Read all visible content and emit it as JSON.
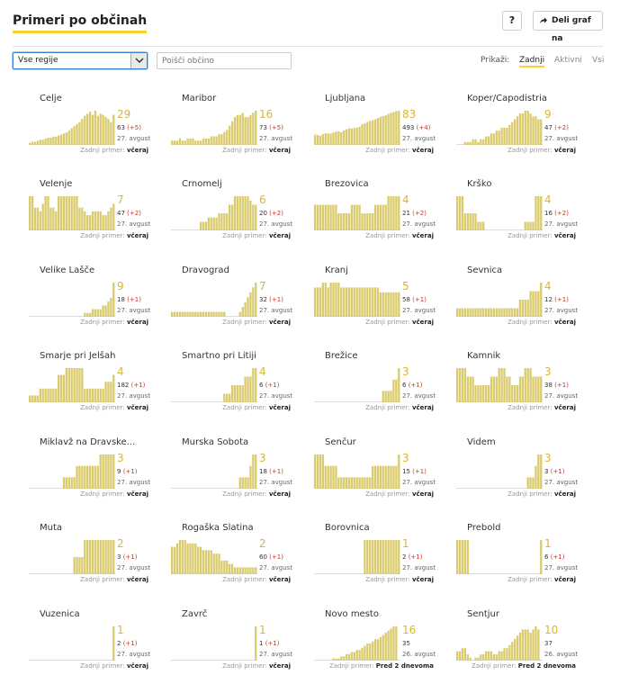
{
  "header": {
    "title": "Primeri po občinah",
    "help_label": "?",
    "share_label": "Deli graf na"
  },
  "controls": {
    "region_value": "Vse regije",
    "search_placeholder": "Poišči občino",
    "display_label": "Prikaži:",
    "options": [
      "Zadnji",
      "Aktivni",
      "Vsi"
    ],
    "active_option": "Zadnji"
  },
  "colors": {
    "bar": "#dacb6e",
    "accent": "#f6d32d",
    "delta": "#c0392b"
  },
  "chart_data": {
    "type": "bar",
    "last_label": "Zadnji primer:",
    "municipalities": [
      {
        "name": "Celje",
        "latest": "29",
        "total": "63",
        "delta": "(+5)",
        "date": "27. avgust",
        "last": "včeraj",
        "values": [
          2,
          3,
          3,
          4,
          5,
          5,
          6,
          7,
          7,
          8,
          8,
          9,
          10,
          11,
          12,
          14,
          16,
          18,
          20,
          22,
          25,
          28,
          30,
          32,
          29,
          33,
          28,
          30,
          29,
          27,
          25,
          22,
          29
        ]
      },
      {
        "name": "Maribor",
        "latest": "16",
        "total": "73",
        "delta": "(+5)",
        "date": "27. avgust",
        "last": "včeraj",
        "values": [
          2,
          2,
          2,
          3,
          2,
          2,
          3,
          3,
          3,
          2,
          2,
          2,
          3,
          3,
          3,
          4,
          4,
          4,
          5,
          5,
          6,
          7,
          9,
          11,
          13,
          14,
          14,
          15,
          13,
          13,
          14,
          15,
          16
        ]
      },
      {
        "name": "Ljubljana",
        "latest": "83",
        "total": "493",
        "delta": "(+4)",
        "date": "27. avgust",
        "last": "včeraj",
        "values": [
          25,
          24,
          22,
          26,
          28,
          28,
          27,
          30,
          32,
          33,
          31,
          35,
          38,
          40,
          40,
          41,
          42,
          44,
          50,
          52,
          56,
          58,
          60,
          62,
          65,
          68,
          70,
          72,
          75,
          78,
          80,
          82,
          83
        ]
      },
      {
        "name": "Koper/Capodistria",
        "latest": "9",
        "total": "47",
        "delta": "(+2)",
        "date": "27. avgust",
        "last": "včeraj",
        "values": [
          0,
          0,
          0,
          1,
          1,
          1,
          2,
          2,
          1,
          2,
          2,
          3,
          3,
          4,
          4,
          5,
          5,
          6,
          6,
          6,
          7,
          8,
          9,
          10,
          11,
          11,
          12,
          12,
          11,
          10,
          10,
          9,
          9
        ]
      },
      {
        "name": "Velenje",
        "latest": "7",
        "total": "47",
        "delta": "(+2)",
        "date": "27. avgust",
        "last": "včeraj",
        "values": [
          9,
          9,
          6,
          6,
          5,
          7,
          9,
          9,
          6,
          6,
          5,
          9,
          9,
          9,
          9,
          9,
          9,
          9,
          9,
          6,
          6,
          5,
          4,
          4,
          5,
          5,
          5,
          5,
          4,
          4,
          5,
          6,
          7
        ]
      },
      {
        "name": "Črnomelj",
        "latest": "6",
        "total": "20",
        "delta": "(+2)",
        "date": "27. avgust",
        "last": "včeraj",
        "values": [
          0,
          0,
          0,
          0,
          0,
          0,
          0,
          0,
          0,
          0,
          0,
          2,
          2,
          2,
          3,
          3,
          3,
          3,
          4,
          4,
          4,
          4,
          6,
          6,
          8,
          8,
          8,
          8,
          8,
          8,
          7,
          6,
          6
        ]
      },
      {
        "name": "Brezovica",
        "latest": "4",
        "total": "21",
        "delta": "(+2)",
        "date": "27. avgust",
        "last": "včeraj",
        "values": [
          3,
          3,
          3,
          3,
          3,
          3,
          3,
          3,
          3,
          2,
          2,
          2,
          2,
          2,
          3,
          3,
          3,
          3,
          2,
          2,
          2,
          2,
          2,
          3,
          3,
          3,
          3,
          3,
          4,
          4,
          4,
          4,
          4
        ]
      },
      {
        "name": "Krško",
        "latest": "4",
        "total": "16",
        "delta": "(+2)",
        "date": "27. avgust",
        "last": "včeraj",
        "values": [
          4,
          4,
          4,
          2,
          2,
          2,
          2,
          2,
          1,
          1,
          1,
          0,
          0,
          0,
          0,
          0,
          0,
          0,
          0,
          0,
          0,
          0,
          0,
          0,
          0,
          0,
          1,
          1,
          1,
          1,
          4,
          4,
          4
        ]
      },
      {
        "name": "Velike Lašče",
        "latest": "9",
        "total": "18",
        "delta": "(+1)",
        "date": "27. avgust",
        "last": "včeraj",
        "values": [
          0,
          0,
          0,
          0,
          0,
          0,
          0,
          0,
          0,
          0,
          0,
          0,
          0,
          0,
          0,
          0,
          0,
          0,
          0,
          0,
          0,
          1,
          1,
          1,
          2,
          2,
          2,
          2,
          3,
          3,
          4,
          5,
          9
        ]
      },
      {
        "name": "Dravograd",
        "latest": "7",
        "total": "32",
        "delta": "(+1)",
        "date": "27. avgust",
        "last": "včeraj",
        "values": [
          1,
          1,
          1,
          1,
          1,
          1,
          1,
          1,
          1,
          1,
          1,
          1,
          1,
          1,
          1,
          1,
          1,
          1,
          1,
          1,
          1,
          0,
          0,
          0,
          0,
          0,
          1,
          2,
          3,
          4,
          5,
          6,
          7
        ]
      },
      {
        "name": "Kranj",
        "latest": "5",
        "total": "58",
        "delta": "(+1)",
        "date": "27. avgust",
        "last": "včeraj",
        "values": [
          6,
          6,
          6,
          7,
          7,
          6,
          7,
          7,
          7,
          7,
          6,
          6,
          6,
          6,
          6,
          6,
          6,
          6,
          6,
          6,
          6,
          6,
          6,
          6,
          6,
          5,
          5,
          5,
          5,
          5,
          5,
          5,
          5
        ]
      },
      {
        "name": "Sevnica",
        "latest": "4",
        "total": "12",
        "delta": "(+1)",
        "date": "27. avgust",
        "last": "včeraj",
        "values": [
          1,
          1,
          1,
          1,
          1,
          1,
          1,
          1,
          1,
          1,
          1,
          1,
          1,
          1,
          1,
          1,
          1,
          1,
          1,
          1,
          1,
          1,
          1,
          1,
          2,
          2,
          2,
          2,
          3,
          3,
          3,
          3,
          4
        ]
      },
      {
        "name": "Šmarje pri Jelšah",
        "latest": "4",
        "total": "182",
        "delta": "(+1)",
        "date": "27. avgust",
        "last": "včeraj",
        "values": [
          1,
          1,
          1,
          1,
          2,
          2,
          2,
          2,
          2,
          2,
          2,
          4,
          4,
          4,
          5,
          5,
          5,
          5,
          5,
          5,
          5,
          2,
          2,
          2,
          2,
          2,
          2,
          2,
          2,
          3,
          3,
          3,
          4
        ]
      },
      {
        "name": "Šmartno pri Litiji",
        "latest": "4",
        "total": "6",
        "delta": "(+1)",
        "date": "27. avgust",
        "last": "včeraj",
        "values": [
          0,
          0,
          0,
          0,
          0,
          0,
          0,
          0,
          0,
          0,
          0,
          0,
          0,
          0,
          0,
          0,
          0,
          0,
          0,
          0,
          1,
          1,
          1,
          2,
          2,
          2,
          2,
          2,
          3,
          3,
          3,
          4,
          4
        ]
      },
      {
        "name": "Brežice",
        "latest": "3",
        "total": "6",
        "delta": "(+1)",
        "date": "27. avgust",
        "last": "včeraj",
        "values": [
          0,
          0,
          0,
          0,
          0,
          0,
          0,
          0,
          0,
          0,
          0,
          0,
          0,
          0,
          0,
          0,
          0,
          0,
          0,
          0,
          0,
          0,
          0,
          0,
          0,
          0,
          1,
          1,
          1,
          1,
          2,
          2,
          3
        ]
      },
      {
        "name": "Kamnik",
        "latest": "3",
        "total": "38",
        "delta": "(+1)",
        "date": "27. avgust",
        "last": "včeraj",
        "values": [
          4,
          4,
          4,
          4,
          3,
          3,
          3,
          2,
          2,
          2,
          2,
          2,
          2,
          3,
          3,
          3,
          4,
          4,
          4,
          3,
          3,
          2,
          2,
          2,
          3,
          3,
          4,
          4,
          4,
          3,
          3,
          3,
          3
        ]
      },
      {
        "name": "Miklavž na Dravske...",
        "latest": "3",
        "total": "9",
        "delta": "(+1)",
        "date": "27. avgust",
        "last": "včeraj",
        "values": [
          0,
          0,
          0,
          0,
          0,
          0,
          0,
          0,
          0,
          0,
          0,
          0,
          0,
          1,
          1,
          1,
          1,
          1,
          2,
          2,
          2,
          2,
          2,
          2,
          2,
          2,
          2,
          3,
          3,
          3,
          3,
          3,
          3
        ]
      },
      {
        "name": "Murska Sobota",
        "latest": "3",
        "total": "18",
        "delta": "(+1)",
        "date": "27. avgust",
        "last": "včeraj",
        "values": [
          0,
          0,
          0,
          0,
          0,
          0,
          0,
          0,
          0,
          0,
          0,
          0,
          0,
          0,
          0,
          0,
          0,
          0,
          0,
          0,
          0,
          0,
          0,
          0,
          0,
          0,
          1,
          1,
          1,
          1,
          2,
          3,
          3
        ]
      },
      {
        "name": "Šenčur",
        "latest": "3",
        "total": "15",
        "delta": "(+1)",
        "date": "27. avgust",
        "last": "včeraj",
        "values": [
          3,
          3,
          3,
          3,
          2,
          2,
          2,
          2,
          2,
          1,
          1,
          1,
          1,
          1,
          1,
          1,
          1,
          1,
          1,
          1,
          1,
          1,
          2,
          2,
          2,
          2,
          2,
          2,
          2,
          2,
          2,
          2,
          3
        ]
      },
      {
        "name": "Videm",
        "latest": "3",
        "total": "3",
        "delta": "(+1)",
        "date": "27. avgust",
        "last": "včeraj",
        "values": [
          0,
          0,
          0,
          0,
          0,
          0,
          0,
          0,
          0,
          0,
          0,
          0,
          0,
          0,
          0,
          0,
          0,
          0,
          0,
          0,
          0,
          0,
          0,
          0,
          0,
          0,
          0,
          1,
          1,
          1,
          2,
          3,
          3
        ]
      },
      {
        "name": "Muta",
        "latest": "2",
        "total": "3",
        "delta": "(+1)",
        "date": "27. avgust",
        "last": "včeraj",
        "values": [
          0,
          0,
          0,
          0,
          0,
          0,
          0,
          0,
          0,
          0,
          0,
          0,
          0,
          0,
          0,
          0,
          0,
          1,
          1,
          1,
          1,
          2,
          2,
          2,
          2,
          2,
          2,
          2,
          2,
          2,
          2,
          2,
          2
        ]
      },
      {
        "name": "Rogaška Slatina",
        "latest": "2",
        "total": "60",
        "delta": "(+1)",
        "date": "27. avgust",
        "last": "včeraj",
        "values": [
          8,
          8,
          9,
          10,
          10,
          10,
          9,
          9,
          9,
          9,
          8,
          8,
          7,
          7,
          7,
          7,
          6,
          6,
          6,
          4,
          4,
          4,
          3,
          3,
          2,
          2,
          2,
          2,
          2,
          2,
          2,
          2,
          2
        ]
      },
      {
        "name": "Borovnica",
        "latest": "1",
        "total": "2",
        "delta": "(+1)",
        "date": "27. avgust",
        "last": "včeraj",
        "values": [
          0,
          0,
          0,
          0,
          0,
          0,
          0,
          0,
          0,
          0,
          0,
          0,
          0,
          0,
          0,
          0,
          0,
          0,
          0,
          1,
          1,
          1,
          1,
          1,
          1,
          1,
          1,
          1,
          1,
          1,
          1,
          1,
          1
        ]
      },
      {
        "name": "Prebold",
        "latest": "1",
        "total": "6",
        "delta": "(+1)",
        "date": "27. avgust",
        "last": "včeraj",
        "values": [
          1,
          1,
          1,
          1,
          1,
          0,
          0,
          0,
          0,
          0,
          0,
          0,
          0,
          0,
          0,
          0,
          0,
          0,
          0,
          0,
          0,
          0,
          0,
          0,
          0,
          0,
          0,
          0,
          0,
          0,
          0,
          0,
          1
        ]
      },
      {
        "name": "Vuzenica",
        "latest": "1",
        "total": "2",
        "delta": "(+1)",
        "date": "27. avgust",
        "last": "včeraj",
        "values": [
          0,
          0,
          0,
          0,
          0,
          0,
          0,
          0,
          0,
          0,
          0,
          0,
          0,
          0,
          0,
          0,
          0,
          0,
          0,
          0,
          0,
          0,
          0,
          0,
          0,
          0,
          0,
          0,
          0,
          0,
          0,
          0,
          1
        ]
      },
      {
        "name": "Zavrč",
        "latest": "1",
        "total": "1",
        "delta": "(+1)",
        "date": "27. avgust",
        "last": "včeraj",
        "values": [
          0,
          0,
          0,
          0,
          0,
          0,
          0,
          0,
          0,
          0,
          0,
          0,
          0,
          0,
          0,
          0,
          0,
          0,
          0,
          0,
          0,
          0,
          0,
          0,
          0,
          0,
          0,
          0,
          0,
          0,
          0,
          0,
          1
        ]
      },
      {
        "name": "Novo mesto",
        "latest": "16",
        "total": "35",
        "delta": "",
        "date": "26. avgust",
        "last": "Pred 2 dnevoma",
        "values": [
          0,
          0,
          0,
          0,
          0,
          0,
          0,
          1,
          1,
          1,
          2,
          2,
          3,
          3,
          4,
          4,
          5,
          5,
          6,
          7,
          8,
          8,
          9,
          10,
          10,
          11,
          12,
          13,
          14,
          15,
          16,
          16,
          0
        ]
      },
      {
        "name": "Šentjur",
        "latest": "10",
        "total": "37",
        "delta": "",
        "date": "26. avgust",
        "last": "Pred 2 dnevoma",
        "values": [
          3,
          3,
          4,
          4,
          2,
          1,
          0,
          1,
          1,
          2,
          2,
          3,
          3,
          3,
          2,
          2,
          3,
          3,
          4,
          4,
          5,
          6,
          7,
          8,
          9,
          10,
          10,
          10,
          9,
          10,
          11,
          10,
          0
        ]
      }
    ]
  }
}
